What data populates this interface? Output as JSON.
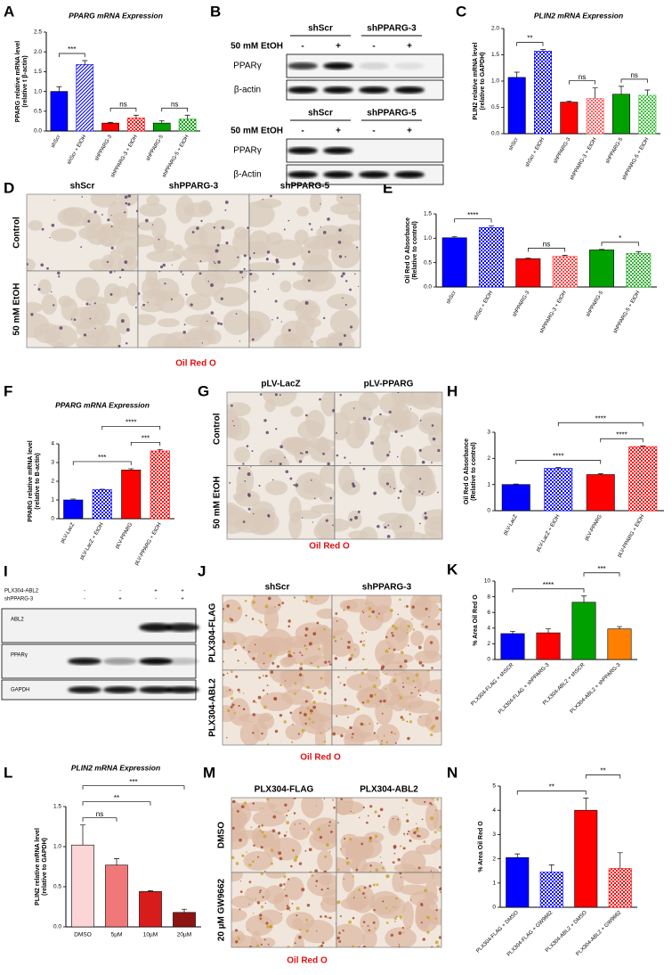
{
  "chart_data": [
    {
      "panel": "A",
      "type": "bar",
      "title": "PPARG mRNA Expression",
      "ylabel": [
        "PPARG relative mRNA level",
        "(relative t β-actin)"
      ],
      "categories": [
        "shScr",
        "shScr + EtOH",
        "shPPARG-3",
        "shPPARG-3 + EtOH",
        "shPPARG-5",
        "shPPARG-5 + EtOH"
      ],
      "values": [
        1.0,
        1.68,
        0.2,
        0.33,
        0.2,
        0.3
      ],
      "errors": [
        0.12,
        0.1,
        0.02,
        0.07,
        0.06,
        0.1
      ],
      "colors": [
        "#0000ff",
        "#0000ff",
        "#ff0000",
        "#ff0000",
        "#00a000",
        "#00a000"
      ],
      "patterns": [
        "solid",
        "hatch",
        "solid",
        "check",
        "solid",
        "check"
      ],
      "ylim": [
        0,
        2.5
      ],
      "yticks": [
        {
          "value": 0,
          "label": "0.0"
        },
        0.5,
        {
          "value": 1,
          "label": "1.0"
        },
        1.5,
        {
          "value": 2,
          "label": "2.0"
        },
        2.5
      ],
      "annotations": [
        {
          "text": "***",
          "between": [
            "shScr",
            "shScr + EtOH"
          ]
        },
        {
          "text": "ns",
          "between": [
            "shPPARG-3",
            "shPPARG-3 + EtOH"
          ]
        },
        {
          "text": "ns",
          "between": [
            "shPPARG-5",
            "shPPARG-5 + EtOH"
          ]
        }
      ]
    },
    {
      "panel": "C",
      "type": "bar",
      "title": "PLIN2 mRNA Expression",
      "ylabel": [
        "PLIN2 relative mRNA level",
        "(relative to GAPDH)"
      ],
      "categories": [
        "shScr",
        "shScr + EtOH",
        "shPPARG-3",
        "shPPARG-3 + EtOH",
        "shPPARG-5",
        "shPPARG-5 + EtOH"
      ],
      "values": [
        1.07,
        1.57,
        0.6,
        0.67,
        0.75,
        0.73
      ],
      "errors": [
        0.1,
        0.03,
        0.02,
        0.2,
        0.15,
        0.1
      ],
      "colors": [
        "#0000ff",
        "#0000ff",
        "#ff0000",
        "#ff6060",
        "#00a000",
        "#40c040"
      ],
      "patterns": [
        "solid",
        "check",
        "solid",
        "check",
        "solid",
        "check"
      ],
      "ylim": [
        0,
        2.0
      ],
      "yticks": [
        {
          "value": 0,
          "label": "0.0"
        },
        0.5,
        {
          "value": 1,
          "label": "1.0"
        },
        1.5,
        {
          "value": 2,
          "label": "2.0"
        }
      ],
      "annotations": [
        {
          "text": "**",
          "between": [
            "shScr",
            "shScr + EtOH"
          ]
        },
        {
          "text": "ns",
          "between": [
            "shPPARG-3",
            "shPPARG-3 + EtOH"
          ]
        },
        {
          "text": "ns",
          "between": [
            "shPPARG-5",
            "shPPARG-5 + EtOH"
          ]
        }
      ]
    },
    {
      "panel": "E",
      "type": "bar",
      "ylabel": [
        "Oil Red O Absorbance",
        "(Relative to control)"
      ],
      "categories": [
        "shScr",
        "shScr + EtOH",
        "shPPARG-3",
        "shPPARG-3 + EtOH",
        "shPPARG-5",
        "shPPARG-5 + EtOH"
      ],
      "values": [
        1.01,
        1.22,
        0.58,
        0.63,
        0.76,
        0.69
      ],
      "errors": [
        0.02,
        0.03,
        0.01,
        0.02,
        0.01,
        0.03
      ],
      "colors": [
        "#0000ff",
        "#0000ff",
        "#ff0000",
        "#ff4040",
        "#00a000",
        "#30b030"
      ],
      "patterns": [
        "solid",
        "check",
        "solid",
        "check",
        "solid",
        "check"
      ],
      "ylim": [
        0,
        1.5
      ],
      "yticks": [
        {
          "value": 0,
          "label": "0.0"
        },
        0.5,
        {
          "value": 1,
          "label": "1.0"
        },
        1.5
      ],
      "annotations": [
        {
          "text": "****",
          "between": [
            "shScr",
            "shScr + EtOH"
          ]
        },
        {
          "text": "ns",
          "between": [
            "shPPARG-3",
            "shPPARG-3 + EtOH"
          ]
        },
        {
          "text": "*",
          "between": [
            "shPPARG-5",
            "shPPARG-5 + EtOH"
          ]
        }
      ]
    },
    {
      "panel": "F",
      "type": "bar",
      "title": "PPARG mRNA Expression",
      "ylabel": [
        "PPARG relative mRNA level",
        "(relative to B-actin)"
      ],
      "categories": [
        "pLV-LacZ",
        "pLV-LacZ + EtOH",
        "pLV-PPARG",
        "pLV-PPARG + EtOH"
      ],
      "values": [
        1.0,
        1.55,
        2.6,
        3.62
      ],
      "errors": [
        0.05,
        0.02,
        0.07,
        0.08
      ],
      "colors": [
        "#0000ff",
        "#0000ff",
        "#ff0000",
        "#ff0000"
      ],
      "patterns": [
        "solid",
        "check",
        "solid",
        "check"
      ],
      "ylim": [
        0,
        4
      ],
      "yticks": [
        0,
        1,
        2,
        3,
        4
      ],
      "annotations": [
        {
          "text": "***",
          "between": [
            "pLV-LacZ",
            "pLV-PPARG"
          ]
        },
        {
          "text": "***",
          "between": [
            "pLV-PPARG",
            "pLV-PPARG + EtOH"
          ]
        },
        {
          "text": "****",
          "between": [
            "pLV-LacZ + EtOH",
            "pLV-PPARG + EtOH"
          ]
        }
      ]
    },
    {
      "panel": "H",
      "type": "bar",
      "ylabel": [
        "Oil Red O Absorbance",
        "(Relative to control)"
      ],
      "categories": [
        "pLV-LacZ",
        "pLV-LacZ + EtOH",
        "pLV-PPARG",
        "pLV-PPARG + EtOH"
      ],
      "values": [
        1.0,
        1.62,
        1.38,
        2.45
      ],
      "errors": [
        0.02,
        0.03,
        0.03,
        0.03
      ],
      "colors": [
        "#0000ff",
        "#0000ff",
        "#ff0000",
        "#ff0000"
      ],
      "patterns": [
        "solid",
        "check",
        "solid",
        "check"
      ],
      "ylim": [
        0,
        3
      ],
      "yticks": [
        0,
        1,
        2,
        3
      ],
      "annotations": [
        {
          "text": "****",
          "between": [
            "pLV-LacZ",
            "pLV-PPARG"
          ]
        },
        {
          "text": "****",
          "between": [
            "pLV-PPARG",
            "pLV-PPARG + EtOH"
          ]
        },
        {
          "text": "****",
          "between": [
            "pLV-LacZ + EtOH",
            "pLV-PPARG + EtOH"
          ]
        }
      ]
    },
    {
      "panel": "K",
      "type": "bar",
      "ylabel": [
        "% Area Oil Red O"
      ],
      "categories": [
        "PLX304-FLAG + shSCR",
        "PLX304-FLAG + shPPARG-3",
        "PLX304-ABL2 + shSCR",
        "PLX304-ABL2 + shPPARG-3"
      ],
      "values": [
        3.3,
        3.4,
        7.3,
        3.9
      ],
      "errors": [
        0.3,
        0.5,
        0.8,
        0.3
      ],
      "colors": [
        "#0000ff",
        "#ff0000",
        "#00a000",
        "#ff8000"
      ],
      "patterns": [
        "solid",
        "solid",
        "solid",
        "solid"
      ],
      "ylim": [
        0,
        10
      ],
      "yticks": [
        0,
        2,
        4,
        6,
        8,
        10
      ],
      "annotations": [
        {
          "text": "****",
          "between": [
            "PLX304-FLAG + shSCR",
            "PLX304-ABL2 + shSCR"
          ]
        },
        {
          "text": "***",
          "between": [
            "PLX304-ABL2 + shSCR",
            "PLX304-ABL2 + shPPARG-3"
          ]
        }
      ]
    },
    {
      "panel": "L",
      "type": "bar",
      "title": "PLIN2 mRNA Expression",
      "ylabel": [
        "PLIN2 relative mRNA level",
        "(relative to GAPDH)"
      ],
      "categories": [
        "DMSO",
        "5µM",
        "10µM",
        "20µM"
      ],
      "values": [
        1.02,
        0.77,
        0.44,
        0.18
      ],
      "errors": [
        0.25,
        0.08,
        0.01,
        0.04
      ],
      "colors": [
        "#fcd6d6",
        "#f07878",
        "#d81c1c",
        "#8e1414"
      ],
      "patterns": [
        "solid",
        "solid",
        "solid",
        "solid"
      ],
      "ylim": [
        0,
        1.5
      ],
      "yticks": [
        {
          "value": 0,
          "label": "0.0"
        },
        0.5,
        {
          "value": 1,
          "label": "1.0"
        },
        1.5
      ],
      "annotations": [
        {
          "text": "ns",
          "between": [
            "DMSO",
            "5µM"
          ]
        },
        {
          "text": "**",
          "between": [
            "DMSO",
            "10µM"
          ]
        },
        {
          "text": "***",
          "between": [
            "DMSO",
            "20µM"
          ]
        }
      ]
    },
    {
      "panel": "N",
      "type": "bar",
      "ylabel": [
        "% Area Oil Red O"
      ],
      "categories": [
        "PLX304-FLAG + DMSO",
        "PLX304-FLAG + GW9662",
        "PLX304-ABL2 + DMSO",
        "PLX304-ABL2 + GW9662"
      ],
      "values": [
        2.05,
        1.45,
        4.0,
        1.6
      ],
      "errors": [
        0.15,
        0.3,
        0.5,
        0.65
      ],
      "colors": [
        "#0000ff",
        "#0000ff",
        "#ff0000",
        "#ff0000"
      ],
      "patterns": [
        "solid",
        "check",
        "solid",
        "check"
      ],
      "ylim": [
        0,
        5
      ],
      "yticks": [
        0,
        1,
        2,
        3,
        4,
        5
      ],
      "annotations": [
        {
          "text": "**",
          "between": [
            "PLX304-FLAG + DMSO",
            "PLX304-ABL2 + DMSO"
          ]
        },
        {
          "text": "**",
          "between": [
            "PLX304-ABL2 + DMSO",
            "PLX304-ABL2 + GW9662"
          ]
        }
      ]
    }
  ],
  "blots": [
    {
      "panel": "B",
      "groups": [
        {
          "conditions": [
            "shScr",
            "shPPARG-3"
          ],
          "treatment": "50 mM EtOH",
          "signs": [
            "-",
            "+",
            "-",
            "+"
          ],
          "bands": [
            "PPARγ",
            "β-actin"
          ]
        },
        {
          "conditions": [
            "shScr",
            "shPPARG-5"
          ],
          "treatment": "50 mM EtOH",
          "signs": [
            "-",
            "+",
            "-",
            "+"
          ],
          "bands": [
            "PPARγ",
            "β-Actin"
          ]
        }
      ]
    },
    {
      "panel": "I",
      "rows": [
        {
          "label": "PLX304-ABL2",
          "signs": [
            "-",
            "-",
            "+",
            "+"
          ]
        },
        {
          "label": "shPPARG-3",
          "signs": [
            "-",
            "+",
            "-",
            "+"
          ]
        }
      ],
      "bands": [
        "ABL2",
        "PPARγ",
        "GAPDH"
      ]
    }
  ],
  "images": [
    {
      "panel": "D",
      "columns": [
        "shScr",
        "shPPARG-3",
        "shPPARG-5"
      ],
      "rows": [
        "Control",
        "50 mM EtOH"
      ],
      "caption": "Oil Red O"
    },
    {
      "panel": "G",
      "columns": [
        "pLV-LacZ",
        "pLV-PPARG"
      ],
      "rows": [
        "Control",
        "50 mM EtOH"
      ],
      "caption": "Oil Red O"
    },
    {
      "panel": "J",
      "columns": [
        "shScr",
        "shPPARG-3"
      ],
      "rows": [
        "PLX304-FLAG",
        "PLX304-ABL2"
      ],
      "caption": "Oil Red O"
    },
    {
      "panel": "M",
      "columns": [
        "PLX304-FLAG",
        "PLX304-ABL2"
      ],
      "rows": [
        "DMSO",
        "20 µM GW9662"
      ],
      "caption": "Oil Red O"
    }
  ]
}
